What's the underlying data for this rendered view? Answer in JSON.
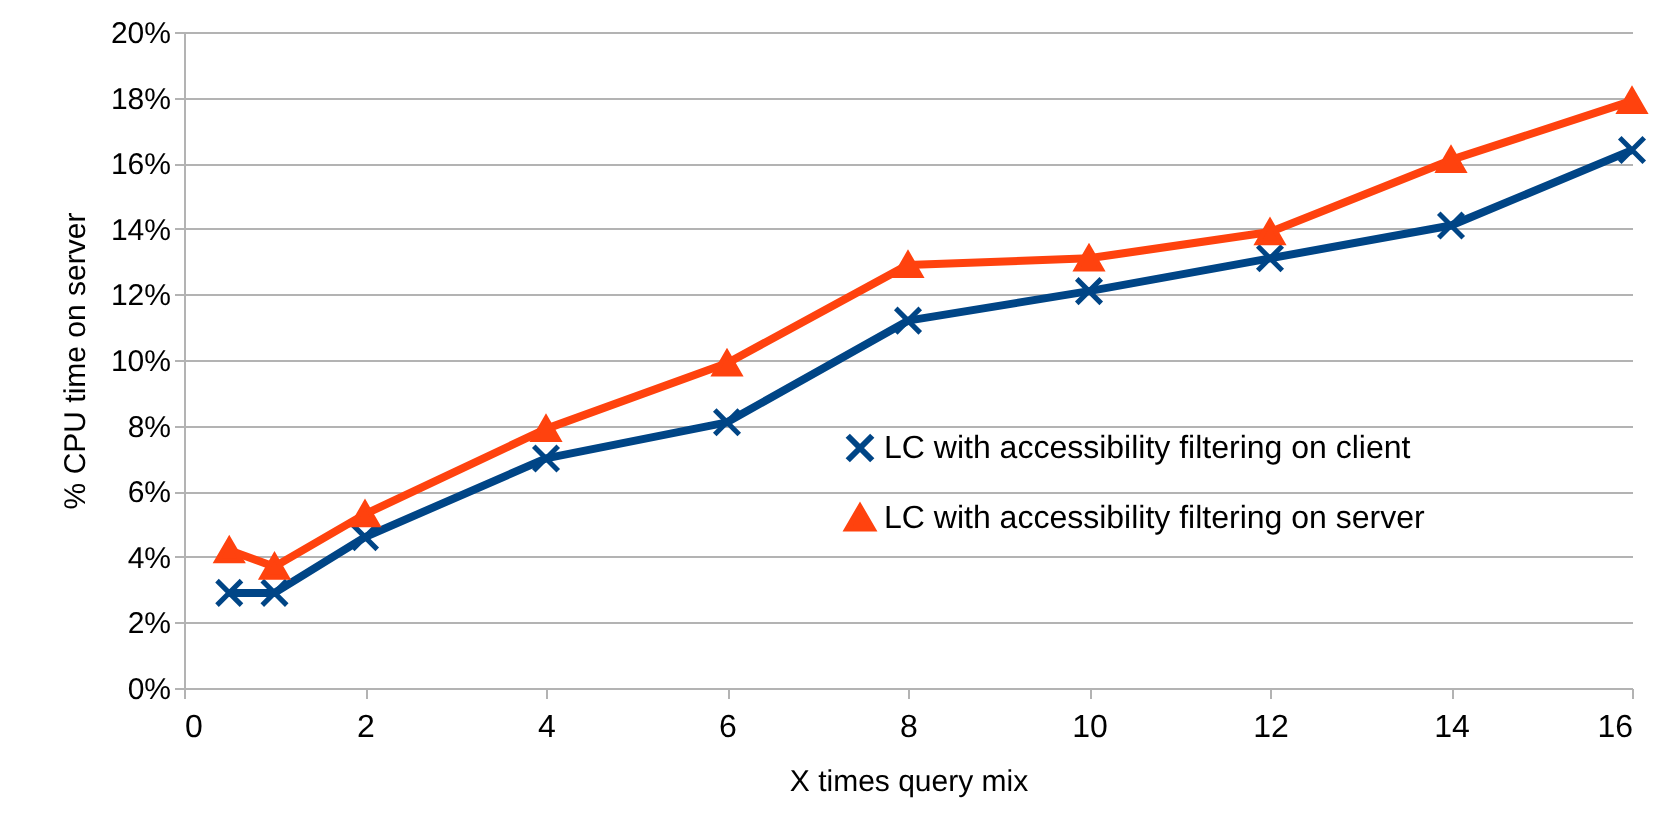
{
  "chart_data": {
    "type": "line",
    "xlabel": "X times query mix",
    "ylabel": "% CPU time on server",
    "x": [
      0.5,
      1,
      2,
      4,
      6,
      8,
      10,
      12,
      14,
      16
    ],
    "series": [
      {
        "name": "LC with accessibility filtering on client",
        "color": "#004586",
        "marker": "cross",
        "values": [
          2.9,
          2.9,
          4.6,
          7.0,
          8.1,
          11.2,
          12.1,
          13.1,
          14.1,
          16.4
        ]
      },
      {
        "name": "LC with accessibility filtering on server",
        "color": "#ff420e",
        "marker": "triangle",
        "values": [
          4.2,
          3.7,
          5.3,
          7.9,
          9.9,
          12.9,
          13.1,
          13.9,
          16.1,
          17.9
        ]
      }
    ],
    "xlim": [
      0,
      16
    ],
    "xticks": [
      0,
      2,
      4,
      6,
      8,
      10,
      12,
      14,
      16
    ],
    "ylim": [
      0,
      20
    ],
    "yticks": [
      {
        "value": 0,
        "label": "0%"
      },
      {
        "value": 2,
        "label": "2%"
      },
      {
        "value": 4,
        "label": "4%"
      },
      {
        "value": 6,
        "label": "6%"
      },
      {
        "value": 8,
        "label": "8%"
      },
      {
        "value": 10,
        "label": "10%"
      },
      {
        "value": 12,
        "label": "12%"
      },
      {
        "value": 14,
        "label": "14%"
      },
      {
        "value": 16,
        "label": "16%"
      },
      {
        "value": 18,
        "label": "18%"
      },
      {
        "value": 20,
        "label": "20%"
      }
    ],
    "grid": "y",
    "legend": "right",
    "line_style": "solid"
  }
}
